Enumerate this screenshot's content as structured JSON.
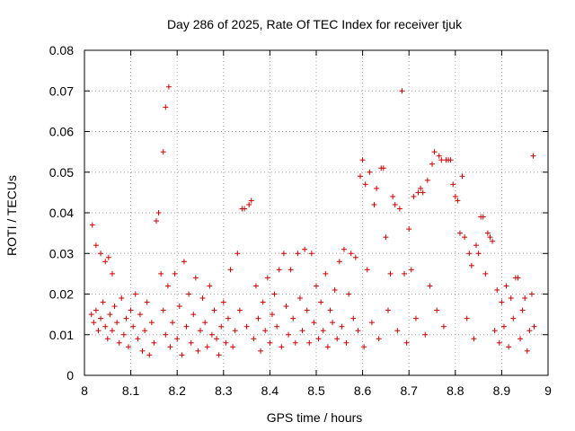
{
  "chart_data": {
    "type": "scatter",
    "title": "Day 286 of 2025, Rate Of TEC Index for receiver tjuk",
    "xlabel": "GPS time / hours",
    "ylabel": "ROTI / TECUs",
    "xlim": [
      8,
      9
    ],
    "ylim": [
      0,
      0.08
    ],
    "x_ticks": [
      "8",
      "8.1",
      "8.2",
      "8.3",
      "8.4",
      "8.5",
      "8.6",
      "8.7",
      "8.8",
      "8.9",
      "9"
    ],
    "y_ticks": [
      "0",
      "0.01",
      "0.02",
      "0.03",
      "0.04",
      "0.05",
      "0.06",
      "0.07",
      "0.08"
    ],
    "grid": true,
    "marker": "+",
    "color": "#cc0000",
    "series": [
      {
        "name": "ROTI",
        "points": [
          [
            8.017,
            0.037
          ],
          [
            8.025,
            0.032
          ],
          [
            8.035,
            0.03
          ],
          [
            8.045,
            0.028
          ],
          [
            8.052,
            0.029
          ],
          [
            8.06,
            0.025
          ],
          [
            8.015,
            0.015
          ],
          [
            8.02,
            0.013
          ],
          [
            8.025,
            0.016
          ],
          [
            8.03,
            0.011
          ],
          [
            8.035,
            0.014
          ],
          [
            8.04,
            0.018
          ],
          [
            8.045,
            0.012
          ],
          [
            8.05,
            0.009
          ],
          [
            8.055,
            0.015
          ],
          [
            8.06,
            0.011
          ],
          [
            8.065,
            0.017
          ],
          [
            8.07,
            0.013
          ],
          [
            8.075,
            0.008
          ],
          [
            8.08,
            0.019
          ],
          [
            8.085,
            0.01
          ],
          [
            8.09,
            0.014
          ],
          [
            8.095,
            0.007
          ],
          [
            8.1,
            0.016
          ],
          [
            8.105,
            0.012
          ],
          [
            8.11,
            0.02
          ],
          [
            8.115,
            0.009
          ],
          [
            8.12,
            0.015
          ],
          [
            8.125,
            0.006
          ],
          [
            8.13,
            0.011
          ],
          [
            8.135,
            0.018
          ],
          [
            8.14,
            0.005
          ],
          [
            8.145,
            0.013
          ],
          [
            8.15,
            0.008
          ],
          [
            8.155,
            0.038
          ],
          [
            8.16,
            0.04
          ],
          [
            8.165,
            0.025
          ],
          [
            8.17,
            0.055
          ],
          [
            8.175,
            0.066
          ],
          [
            8.182,
            0.071
          ],
          [
            8.17,
            0.016
          ],
          [
            8.175,
            0.01
          ],
          [
            8.18,
            0.022
          ],
          [
            8.185,
            0.007
          ],
          [
            8.19,
            0.013
          ],
          [
            8.195,
            0.025
          ],
          [
            8.2,
            0.009
          ],
          [
            8.205,
            0.017
          ],
          [
            8.21,
            0.005
          ],
          [
            8.215,
            0.028
          ],
          [
            8.22,
            0.012
          ],
          [
            8.225,
            0.02
          ],
          [
            8.23,
            0.008
          ],
          [
            8.235,
            0.015
          ],
          [
            8.24,
            0.024
          ],
          [
            8.245,
            0.006
          ],
          [
            8.25,
            0.011
          ],
          [
            8.255,
            0.019
          ],
          [
            8.26,
            0.013
          ],
          [
            8.265,
            0.007
          ],
          [
            8.27,
            0.022
          ],
          [
            8.275,
            0.01
          ],
          [
            8.28,
            0.016
          ],
          [
            8.285,
            0.009
          ],
          [
            8.29,
            0.005
          ],
          [
            8.295,
            0.012
          ],
          [
            8.3,
            0.018
          ],
          [
            8.305,
            0.008
          ],
          [
            8.31,
            0.014
          ],
          [
            8.315,
            0.026
          ],
          [
            8.32,
            0.007
          ],
          [
            8.325,
            0.011
          ],
          [
            8.33,
            0.03
          ],
          [
            8.335,
            0.016
          ],
          [
            8.34,
            0.041
          ],
          [
            8.345,
            0.041
          ],
          [
            8.35,
            0.012
          ],
          [
            8.355,
            0.042
          ],
          [
            8.36,
            0.043
          ],
          [
            8.365,
            0.009
          ],
          [
            8.37,
            0.022
          ],
          [
            8.375,
            0.014
          ],
          [
            8.38,
            0.006
          ],
          [
            8.385,
            0.018
          ],
          [
            8.39,
            0.011
          ],
          [
            8.395,
            0.024
          ],
          [
            8.4,
            0.008
          ],
          [
            8.405,
            0.015
          ],
          [
            8.41,
            0.02
          ],
          [
            8.415,
            0.012
          ],
          [
            8.42,
            0.026
          ],
          [
            8.425,
            0.007
          ],
          [
            8.43,
            0.03
          ],
          [
            8.435,
            0.017
          ],
          [
            8.44,
            0.01
          ],
          [
            8.445,
            0.026
          ],
          [
            8.45,
            0.014
          ],
          [
            8.455,
            0.008
          ],
          [
            8.46,
            0.03
          ],
          [
            8.465,
            0.019
          ],
          [
            8.47,
            0.011
          ],
          [
            8.475,
            0.031
          ],
          [
            8.48,
            0.016
          ],
          [
            8.485,
            0.008
          ],
          [
            8.49,
            0.03
          ],
          [
            8.495,
            0.013
          ],
          [
            8.5,
            0.022
          ],
          [
            8.505,
            0.009
          ],
          [
            8.51,
            0.018
          ],
          [
            8.515,
            0.011
          ],
          [
            8.52,
            0.025
          ],
          [
            8.525,
            0.007
          ],
          [
            8.53,
            0.016
          ],
          [
            8.535,
            0.013
          ],
          [
            8.54,
            0.021
          ],
          [
            8.545,
            0.009
          ],
          [
            8.55,
            0.028
          ],
          [
            8.555,
            0.012
          ],
          [
            8.56,
            0.031
          ],
          [
            8.565,
            0.008
          ],
          [
            8.57,
            0.02
          ],
          [
            8.575,
            0.03
          ],
          [
            8.58,
            0.014
          ],
          [
            8.585,
            0.029
          ],
          [
            8.59,
            0.011
          ],
          [
            8.595,
            0.049
          ],
          [
            8.6,
            0.053
          ],
          [
            8.603,
            0.007
          ],
          [
            8.606,
            0.047
          ],
          [
            8.61,
            0.026
          ],
          [
            8.615,
            0.05
          ],
          [
            8.62,
            0.013
          ],
          [
            8.625,
            0.042
          ],
          [
            8.63,
            0.046
          ],
          [
            8.635,
            0.009
          ],
          [
            8.64,
            0.051
          ],
          [
            8.645,
            0.051
          ],
          [
            8.65,
            0.034
          ],
          [
            8.655,
            0.016
          ],
          [
            8.66,
            0.025
          ],
          [
            8.665,
            0.044
          ],
          [
            8.67,
            0.042
          ],
          [
            8.675,
            0.011
          ],
          [
            8.68,
            0.041
          ],
          [
            8.685,
            0.07
          ],
          [
            8.69,
            0.025
          ],
          [
            8.695,
            0.008
          ],
          [
            8.7,
            0.036
          ],
          [
            8.705,
            0.026
          ],
          [
            8.71,
            0.044
          ],
          [
            8.715,
            0.014
          ],
          [
            8.72,
            0.045
          ],
          [
            8.725,
            0.046
          ],
          [
            8.73,
            0.045
          ],
          [
            8.735,
            0.01
          ],
          [
            8.74,
            0.048
          ],
          [
            8.745,
            0.022
          ],
          [
            8.75,
            0.052
          ],
          [
            8.755,
            0.055
          ],
          [
            8.76,
            0.016
          ],
          [
            8.765,
            0.054
          ],
          [
            8.77,
            0.053
          ],
          [
            8.775,
            0.012
          ],
          [
            8.78,
            0.053
          ],
          [
            8.785,
            0.053
          ],
          [
            8.79,
            0.053
          ],
          [
            8.795,
            0.047
          ],
          [
            8.8,
            0.044
          ],
          [
            8.805,
            0.043
          ],
          [
            8.81,
            0.035
          ],
          [
            8.815,
            0.049
          ],
          [
            8.82,
            0.034
          ],
          [
            8.825,
            0.014
          ],
          [
            8.83,
            0.03
          ],
          [
            8.835,
            0.027
          ],
          [
            8.84,
            0.009
          ],
          [
            8.845,
            0.032
          ],
          [
            8.85,
            0.03
          ],
          [
            8.855,
            0.039
          ],
          [
            8.86,
            0.039
          ],
          [
            8.865,
            0.025
          ],
          [
            8.87,
            0.035
          ],
          [
            8.875,
            0.034
          ],
          [
            8.88,
            0.033
          ],
          [
            8.885,
            0.011
          ],
          [
            8.89,
            0.021
          ],
          [
            8.895,
            0.008
          ],
          [
            8.9,
            0.018
          ],
          [
            8.905,
            0.012
          ],
          [
            8.91,
            0.022
          ],
          [
            8.915,
            0.007
          ],
          [
            8.92,
            0.019
          ],
          [
            8.925,
            0.014
          ],
          [
            8.93,
            0.024
          ],
          [
            8.935,
            0.024
          ],
          [
            8.94,
            0.009
          ],
          [
            8.945,
            0.016
          ],
          [
            8.95,
            0.019
          ],
          [
            8.955,
            0.006
          ],
          [
            8.96,
            0.011
          ],
          [
            8.965,
            0.02
          ],
          [
            8.968,
            0.054
          ],
          [
            8.97,
            0.012
          ]
        ]
      }
    ]
  }
}
